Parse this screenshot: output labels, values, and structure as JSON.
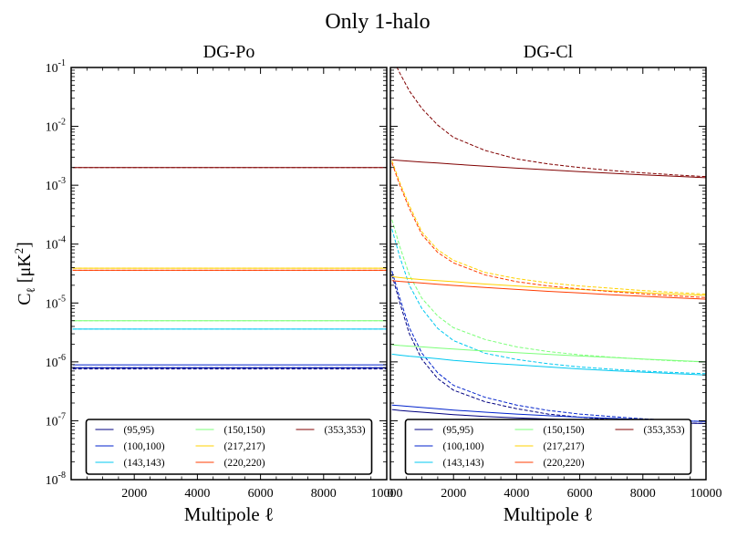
{
  "figure": {
    "suptitle": "Only 1-halo"
  },
  "chart_data": [
    {
      "type": "line",
      "title": "DG-Po",
      "xlabel": "Multipole ℓ",
      "ylabel": "C",
      "ylabel_sub": "ℓ",
      "ylabel_unit_pre": " [μK",
      "ylabel_unit_sup": "2",
      "ylabel_unit_post": "]",
      "xlim": [
        0,
        10000
      ],
      "ylim": [
        1e-08,
        0.1
      ],
      "yscale": "log",
      "x_ticks": [
        2000,
        4000,
        6000,
        8000,
        10000
      ],
      "y_ticks": [
        -8,
        -7,
        -6,
        -5,
        -4,
        -3,
        -2,
        -1
      ],
      "legend_location": "lower center",
      "series": [
        {
          "name": "(95,95)",
          "color": "#000080",
          "x": [
            50,
            10000
          ],
          "solid": [
            7.9e-07,
            7.9e-07
          ],
          "dashed": [
            7.6e-07,
            7.6e-07
          ]
        },
        {
          "name": "(100,100)",
          "color": "#0022cc",
          "x": [
            50,
            10000
          ],
          "solid": [
            8.9e-07,
            8.9e-07
          ],
          "dashed": [
            8e-07,
            8e-07
          ]
        },
        {
          "name": "(143,143)",
          "color": "#00c8f0",
          "x": [
            50,
            10000
          ],
          "solid": [
            3.6e-06,
            3.6e-06
          ],
          "dashed": [
            3.6e-06,
            3.6e-06
          ]
        },
        {
          "name": "(150,150)",
          "color": "#7cff79",
          "x": [
            50,
            10000
          ],
          "solid": [
            5e-06,
            5e-06
          ],
          "dashed": [
            5e-06,
            5e-06
          ]
        },
        {
          "name": "(217,217)",
          "color": "#ffd200",
          "x": [
            50,
            10000
          ],
          "solid": [
            3.9e-05,
            3.9e-05
          ],
          "dashed": [
            3.9e-05,
            3.9e-05
          ]
        },
        {
          "name": "(220,220)",
          "color": "#ff3c00",
          "x": [
            50,
            10000
          ],
          "solid": [
            3.6e-05,
            3.6e-05
          ],
          "dashed": [
            3.6e-05,
            3.6e-05
          ]
        },
        {
          "name": "(353,353)",
          "color": "#800000",
          "x": [
            50,
            10000
          ],
          "solid": [
            0.002,
            0.002
          ],
          "dashed": [
            0.002,
            0.002
          ]
        }
      ]
    },
    {
      "type": "line",
      "title": "DG-Cl",
      "xlabel": "Multipole ℓ",
      "xlim": [
        0,
        10000
      ],
      "ylim": [
        1e-08,
        0.1
      ],
      "yscale": "log",
      "x_ticks": [
        0,
        2000,
        4000,
        6000,
        8000,
        10000
      ],
      "legend_location": "lower center",
      "series": [
        {
          "name": "(95,95)",
          "color": "#000080",
          "x": [
            50,
            300,
            600,
            1000,
            1500,
            2000,
            3000,
            4000,
            5000,
            6000,
            7000,
            8000,
            9000,
            10000
          ],
          "solid": [
            1.55e-07,
            1.5e-07,
            1.45e-07,
            1.4e-07,
            1.33e-07,
            1.27e-07,
            1.18e-07,
            1.12e-07,
            1.07e-07,
            1.02e-07,
            9.8e-08,
            9.5e-08,
            9.2e-08,
            9e-08
          ],
          "dashed": [
            3e-05,
            1e-05,
            3e-06,
            1.1e-06,
            5.2e-07,
            3.3e-07,
            2.1e-07,
            1.6e-07,
            1.3e-07,
            1.15e-07,
            1.05e-07,
            9.8e-08,
            9.3e-08,
            9e-08
          ]
        },
        {
          "name": "(100,100)",
          "color": "#0022cc",
          "x": [
            50,
            300,
            600,
            1000,
            1500,
            2000,
            3000,
            4000,
            5000,
            6000,
            7000,
            8000,
            9000,
            10000
          ],
          "solid": [
            1.85e-07,
            1.8e-07,
            1.75e-07,
            1.68e-07,
            1.6e-07,
            1.52e-07,
            1.4e-07,
            1.3e-07,
            1.22e-07,
            1.15e-07,
            1.1e-07,
            1.05e-07,
            1e-07,
            9.7e-08
          ],
          "dashed": [
            3.5e-05,
            1.2e-05,
            3.8e-06,
            1.4e-06,
            6.5e-07,
            4e-07,
            2.5e-07,
            1.85e-07,
            1.5e-07,
            1.3e-07,
            1.18e-07,
            1.08e-07,
            1.02e-07,
            9.7e-08
          ]
        },
        {
          "name": "(143,143)",
          "color": "#00c8f0",
          "x": [
            50,
            300,
            600,
            1000,
            1500,
            2000,
            3000,
            4000,
            5000,
            6000,
            7000,
            8000,
            9000,
            10000
          ],
          "solid": [
            1.35e-06,
            1.3e-06,
            1.25e-06,
            1.2e-06,
            1.13e-06,
            1.06e-06,
            9.6e-07,
            8.9e-07,
            8.2e-07,
            7.6e-07,
            7.1e-07,
            6.7e-07,
            6.3e-07,
            6e-07
          ],
          "dashed": [
            0.00018,
            6e-05,
            2e-05,
            8e-06,
            3.7e-06,
            2.3e-06,
            1.4e-06,
            1.1e-06,
            9.3e-07,
            8.2e-07,
            7.5e-07,
            7e-07,
            6.6e-07,
            6.3e-07
          ]
        },
        {
          "name": "(150,150)",
          "color": "#7cff79",
          "x": [
            50,
            300,
            600,
            1000,
            1500,
            2000,
            3000,
            4000,
            5000,
            6000,
            7000,
            8000,
            9000,
            10000
          ],
          "solid": [
            1.95e-06,
            1.9e-06,
            1.85e-06,
            1.8e-06,
            1.72e-06,
            1.65e-06,
            1.53e-06,
            1.43e-06,
            1.34e-06,
            1.26e-06,
            1.19e-06,
            1.12e-06,
            1.06e-06,
            1e-06
          ],
          "dashed": [
            0.00026,
            9e-05,
            3e-05,
            1.2e-05,
            6e-06,
            3.8e-06,
            2.4e-06,
            1.8e-06,
            1.5e-06,
            1.32e-06,
            1.2e-06,
            1.11e-06,
            1.04e-06,
            1e-06
          ]
        },
        {
          "name": "(217,217)",
          "color": "#ffd200",
          "x": [
            50,
            300,
            600,
            1000,
            1500,
            2000,
            3000,
            4000,
            5000,
            6000,
            7000,
            8000,
            9000,
            10000
          ],
          "solid": [
            2.8e-05,
            2.7e-05,
            2.6e-05,
            2.5e-05,
            2.4e-05,
            2.3e-05,
            2.1e-05,
            1.95e-05,
            1.8e-05,
            1.7e-05,
            1.6e-05,
            1.5e-05,
            1.42e-05,
            1.35e-05
          ],
          "dashed": [
            0.0026,
            0.0011,
            0.00045,
            0.00016,
            8e-05,
            5.3e-05,
            3.3e-05,
            2.6e-05,
            2.2e-05,
            1.95e-05,
            1.78e-05,
            1.63e-05,
            1.51e-05,
            1.42e-05
          ]
        },
        {
          "name": "(220,220)",
          "color": "#ff3c00",
          "x": [
            50,
            300,
            600,
            1000,
            1500,
            2000,
            3000,
            4000,
            5000,
            6000,
            7000,
            8000,
            9000,
            10000
          ],
          "solid": [
            2.4e-05,
            2.33e-05,
            2.26e-05,
            2.18e-05,
            2.08e-05,
            1.99e-05,
            1.83e-05,
            1.7e-05,
            1.58e-05,
            1.48e-05,
            1.38e-05,
            1.3e-05,
            1.23e-05,
            1.16e-05
          ],
          "dashed": [
            0.0024,
            0.001,
            0.0004,
            0.000145,
            7.2e-05,
            4.8e-05,
            3e-05,
            2.3e-05,
            1.95e-05,
            1.73e-05,
            1.56e-05,
            1.43e-05,
            1.32e-05,
            1.24e-05
          ]
        },
        {
          "name": "(353,353)",
          "color": "#800000",
          "x": [
            50,
            300,
            600,
            1000,
            1500,
            2000,
            3000,
            4000,
            5000,
            6000,
            7000,
            8000,
            9000,
            10000
          ],
          "solid": [
            0.0027,
            0.00263,
            0.00257,
            0.00248,
            0.00238,
            0.00228,
            0.0021,
            0.00195,
            0.00182,
            0.0017,
            0.0016,
            0.0015,
            0.00142,
            0.00134
          ],
          "dashed": [
            0.15,
            0.08,
            0.04,
            0.02,
            0.0105,
            0.0065,
            0.0039,
            0.0028,
            0.0023,
            0.002,
            0.00178,
            0.00162,
            0.0015,
            0.0014
          ]
        }
      ]
    }
  ]
}
